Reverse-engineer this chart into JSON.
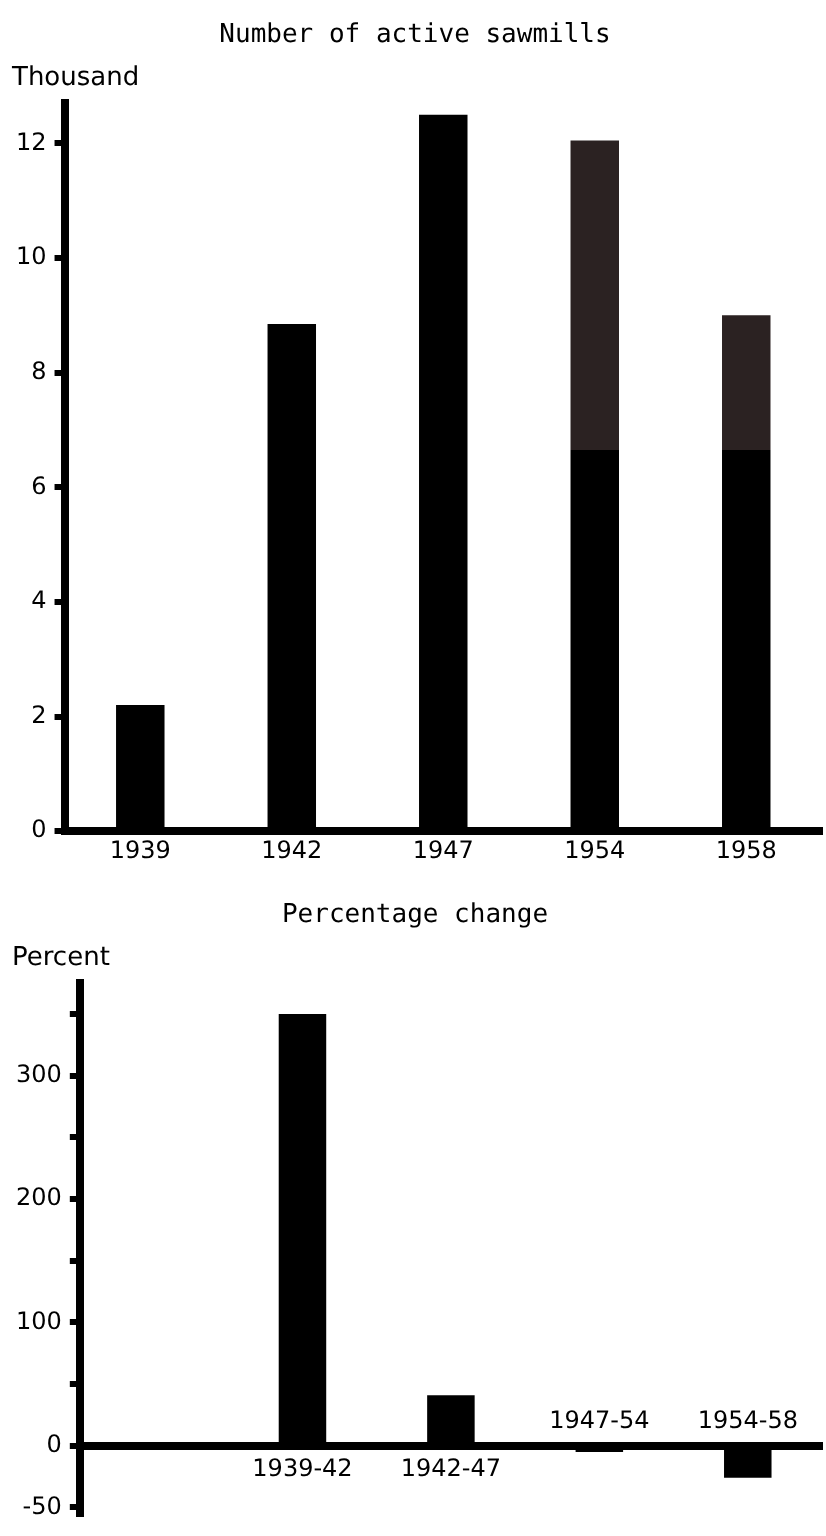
{
  "chart_data": [
    {
      "type": "bar",
      "title": "Number of active sawmills",
      "ylabel": "Thousand",
      "stacked": true,
      "categories": [
        "1939",
        "1942",
        "1947",
        "1954",
        "1958"
      ],
      "series": [
        {
          "color": "#000000",
          "values": [
            2.2,
            8.85,
            12.5,
            6.65,
            6.65
          ]
        },
        {
          "color": "#2b2222",
          "values": [
            null,
            null,
            null,
            5.4,
            2.35
          ]
        }
      ],
      "ylim": [
        0,
        12.7
      ],
      "yticks": [
        0,
        2,
        4,
        6,
        8,
        10,
        12
      ],
      "grid": false,
      "legend": false
    },
    {
      "type": "bar",
      "title": "Percentage change",
      "ylabel": "Percent",
      "categories": [
        null,
        "1939-42",
        "1942-47",
        "1947-54",
        "1954-58"
      ],
      "values": [
        null,
        350,
        41,
        -5,
        -26
      ],
      "color": "#000000",
      "ylim": [
        -55,
        375
      ],
      "yticks": [
        {
          "value": -50,
          "label": "-50"
        },
        0,
        {
          "value": 50,
          "label": null
        },
        100,
        {
          "value": 150,
          "label": null
        },
        200,
        {
          "value": 250,
          "label": null
        },
        300,
        {
          "value": 350,
          "label": null
        }
      ],
      "grid": false,
      "legend": false
    }
  ]
}
